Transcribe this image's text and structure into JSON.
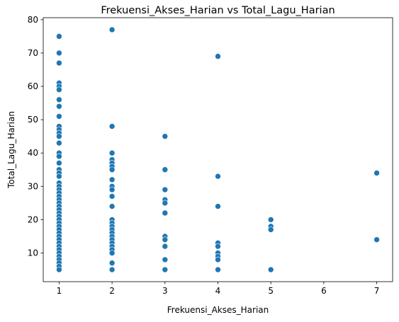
{
  "chart_data": {
    "type": "scatter",
    "title": "Frekuensi_Akses_Harian vs Total_Lagu_Harian",
    "xlabel": "Frekuensi_Akses_Harian",
    "ylabel": "Total_Lagu_Harian",
    "xlim": [
      0.7,
      7.3
    ],
    "ylim": [
      1.4,
      80.6
    ],
    "xticks": [
      1,
      2,
      3,
      4,
      5,
      6,
      7
    ],
    "yticks": [
      10,
      20,
      30,
      40,
      50,
      60,
      70,
      80
    ],
    "grid": false,
    "marker_color": "#1f77b4",
    "marker_edge_color": "#ffffff",
    "points": [
      [
        1,
        75
      ],
      [
        1,
        70
      ],
      [
        1,
        67
      ],
      [
        1,
        61
      ],
      [
        1,
        60
      ],
      [
        1,
        59
      ],
      [
        1,
        56
      ],
      [
        1,
        54
      ],
      [
        1,
        51
      ],
      [
        1,
        48
      ],
      [
        1,
        47
      ],
      [
        1,
        46
      ],
      [
        1,
        45
      ],
      [
        1,
        43
      ],
      [
        1,
        40
      ],
      [
        1,
        39
      ],
      [
        1,
        37
      ],
      [
        1,
        35
      ],
      [
        1,
        34
      ],
      [
        1,
        33
      ],
      [
        1,
        31
      ],
      [
        1,
        30
      ],
      [
        1,
        29
      ],
      [
        1,
        28
      ],
      [
        1,
        27
      ],
      [
        1,
        26
      ],
      [
        1,
        25
      ],
      [
        1,
        24
      ],
      [
        1,
        23
      ],
      [
        1,
        22
      ],
      [
        1,
        21
      ],
      [
        1,
        20
      ],
      [
        1,
        19
      ],
      [
        1,
        18
      ],
      [
        1,
        17
      ],
      [
        1,
        16
      ],
      [
        1,
        15
      ],
      [
        1,
        14
      ],
      [
        1,
        13
      ],
      [
        1,
        12
      ],
      [
        1,
        11
      ],
      [
        1,
        10
      ],
      [
        1,
        9
      ],
      [
        1,
        8
      ],
      [
        1,
        7
      ],
      [
        1,
        6
      ],
      [
        1,
        5
      ],
      [
        2,
        77
      ],
      [
        2,
        48
      ],
      [
        2,
        40
      ],
      [
        2,
        38
      ],
      [
        2,
        37
      ],
      [
        2,
        36
      ],
      [
        2,
        35
      ],
      [
        2,
        32
      ],
      [
        2,
        30
      ],
      [
        2,
        29
      ],
      [
        2,
        27
      ],
      [
        2,
        24
      ],
      [
        2,
        20
      ],
      [
        2,
        19
      ],
      [
        2,
        18
      ],
      [
        2,
        17
      ],
      [
        2,
        16
      ],
      [
        2,
        15
      ],
      [
        2,
        14
      ],
      [
        2,
        13
      ],
      [
        2,
        12
      ],
      [
        2,
        11
      ],
      [
        2,
        10
      ],
      [
        2,
        7
      ],
      [
        2,
        5
      ],
      [
        3,
        45
      ],
      [
        3,
        35
      ],
      [
        3,
        29
      ],
      [
        3,
        26
      ],
      [
        3,
        25
      ],
      [
        3,
        22
      ],
      [
        3,
        15
      ],
      [
        3,
        14
      ],
      [
        3,
        12
      ],
      [
        3,
        8
      ],
      [
        3,
        5
      ],
      [
        4,
        69
      ],
      [
        4,
        33
      ],
      [
        4,
        24
      ],
      [
        4,
        13
      ],
      [
        4,
        12
      ],
      [
        4,
        10
      ],
      [
        4,
        9
      ],
      [
        4,
        8
      ],
      [
        4,
        5
      ],
      [
        5,
        20
      ],
      [
        5,
        18
      ],
      [
        5,
        17
      ],
      [
        5,
        5
      ],
      [
        7,
        34
      ],
      [
        7,
        14
      ]
    ]
  }
}
